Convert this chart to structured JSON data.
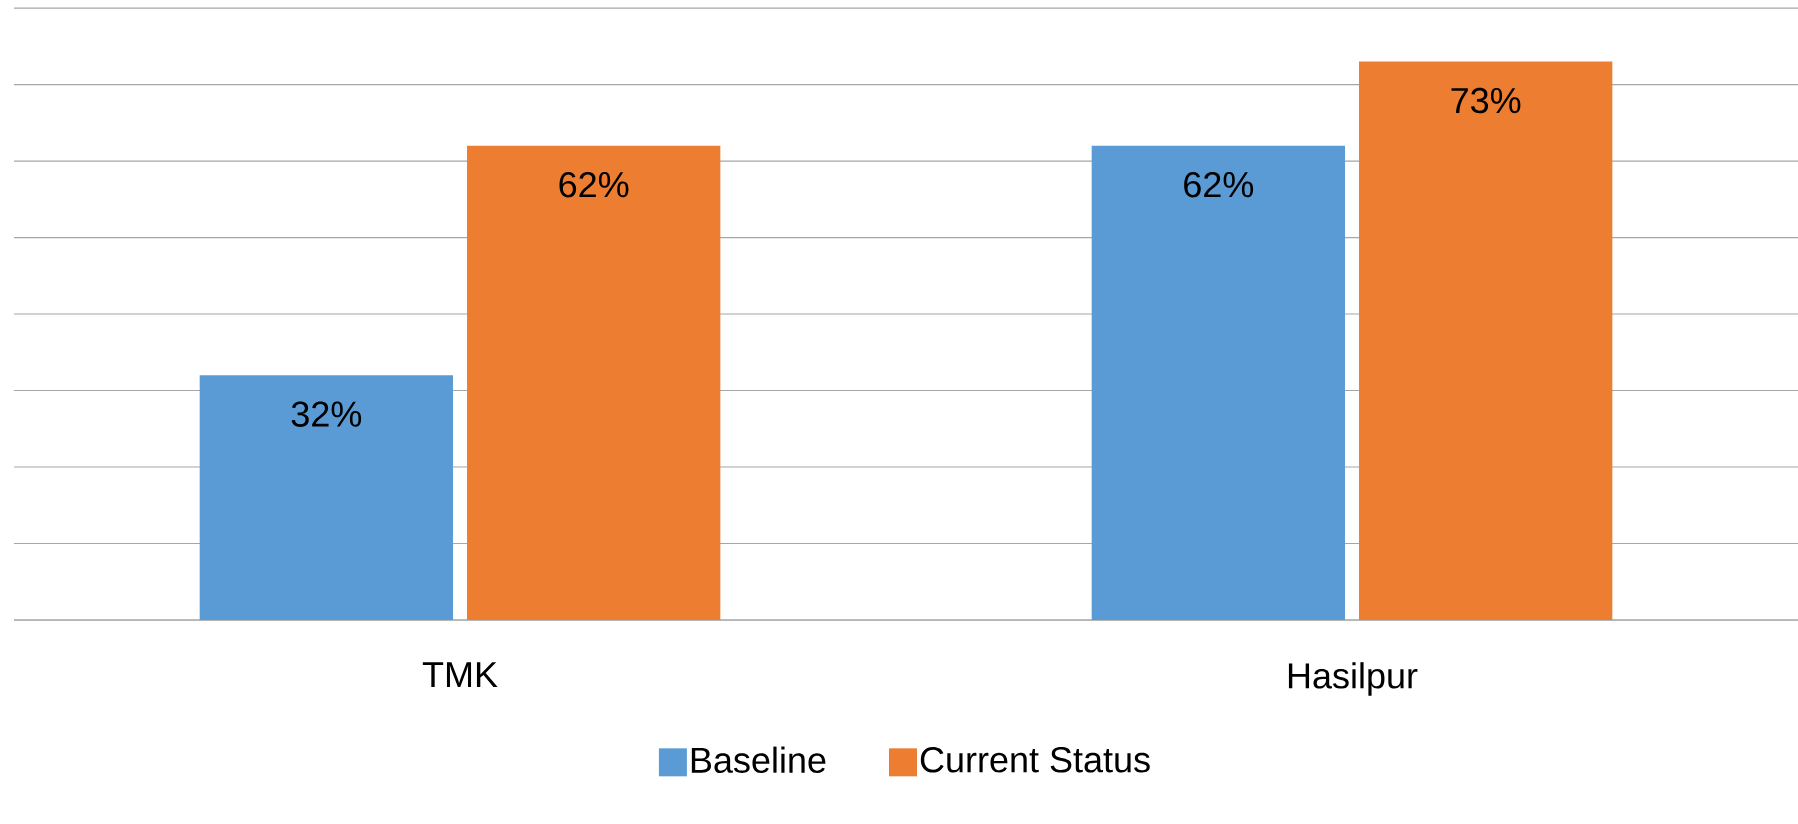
{
  "chart_data": {
    "type": "bar",
    "categories": [
      "TMK",
      "Hasilpur"
    ],
    "series": [
      {
        "name": "Baseline",
        "color": "#5b9bd5",
        "values": [
          32,
          62
        ],
        "value_labels": [
          "32%",
          "62%"
        ]
      },
      {
        "name": "Current Status",
        "color": "#ed7d31",
        "values": [
          62,
          73
        ],
        "value_labels": [
          "62%",
          "73%"
        ]
      }
    ],
    "tick_labels": "x",
    "grid": "y",
    "legend": "bottom"
  }
}
